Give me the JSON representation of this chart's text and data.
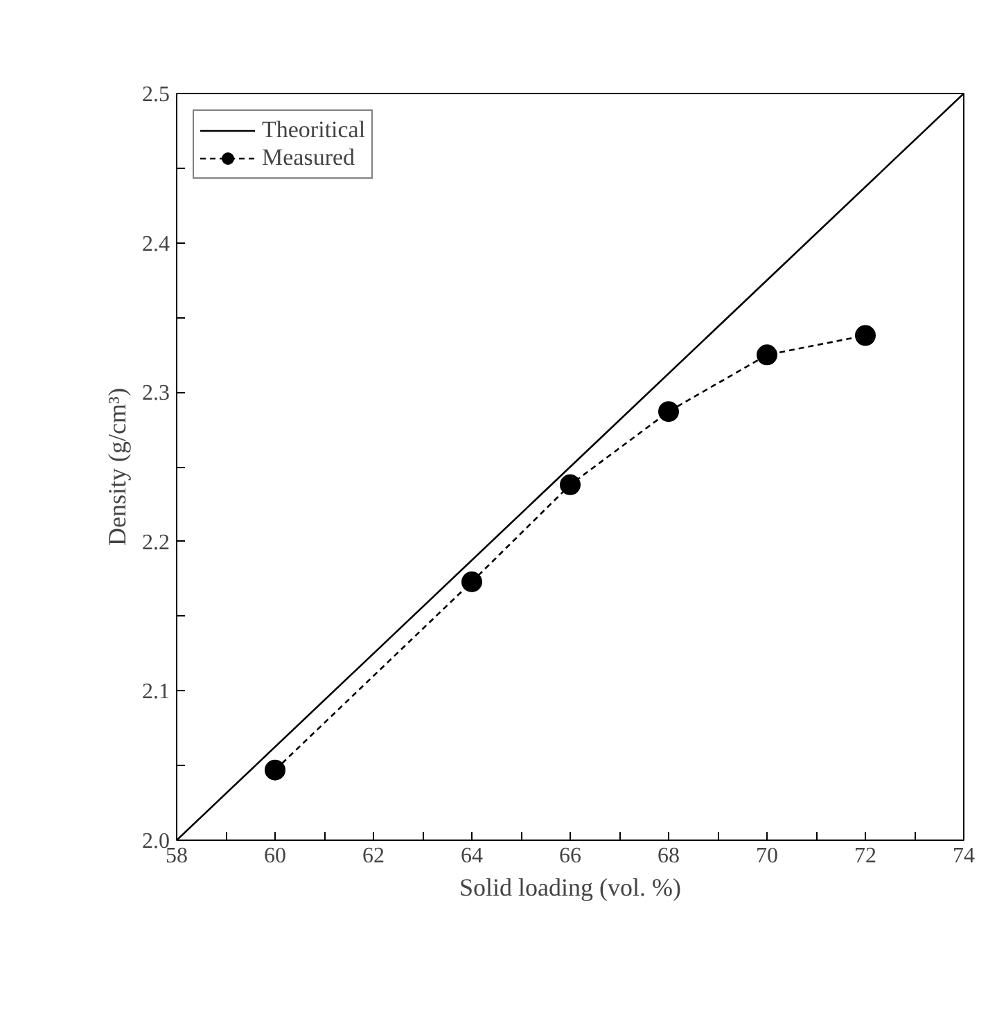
{
  "chart_data": {
    "type": "line",
    "xlabel": "Solid loading (vol. %)",
    "ylabel": "Density (g/cm³)",
    "xlim": [
      58,
      74
    ],
    "ylim": [
      2.0,
      2.5
    ],
    "xticks": [
      58,
      {
        "value": 59,
        "label": null
      },
      60,
      {
        "value": 61,
        "label": null
      },
      62,
      {
        "value": 63,
        "label": null
      },
      64,
      {
        "value": 65,
        "label": null
      },
      66,
      {
        "value": 67,
        "label": null
      },
      68,
      {
        "value": 69,
        "label": null
      },
      70,
      {
        "value": 71,
        "label": null
      },
      72,
      {
        "value": 73,
        "label": null
      },
      74
    ],
    "yticks": [
      {
        "value": 2.0,
        "label": "2.0"
      },
      {
        "value": 2.05,
        "label": null
      },
      2.1,
      {
        "value": 2.15,
        "label": null
      },
      2.2,
      {
        "value": 2.25,
        "label": null
      },
      2.3,
      {
        "value": 2.35,
        "label": null
      },
      2.4,
      {
        "value": 2.45,
        "label": null
      },
      2.5
    ],
    "grid": false,
    "legend": "top left",
    "series": [
      {
        "name": "Theoritical",
        "color": "#000000",
        "x": [
          58,
          74
        ],
        "values": [
          2.0,
          2.5
        ],
        "marker": "none",
        "line_style": "solid"
      },
      {
        "name": "Measured",
        "color": "#000000",
        "x": [
          60,
          64,
          66,
          68,
          70,
          72
        ],
        "values": [
          2.047,
          2.173,
          2.238,
          2.287,
          2.325,
          2.338
        ],
        "marker": "circle",
        "line_style": "dashed"
      }
    ]
  }
}
